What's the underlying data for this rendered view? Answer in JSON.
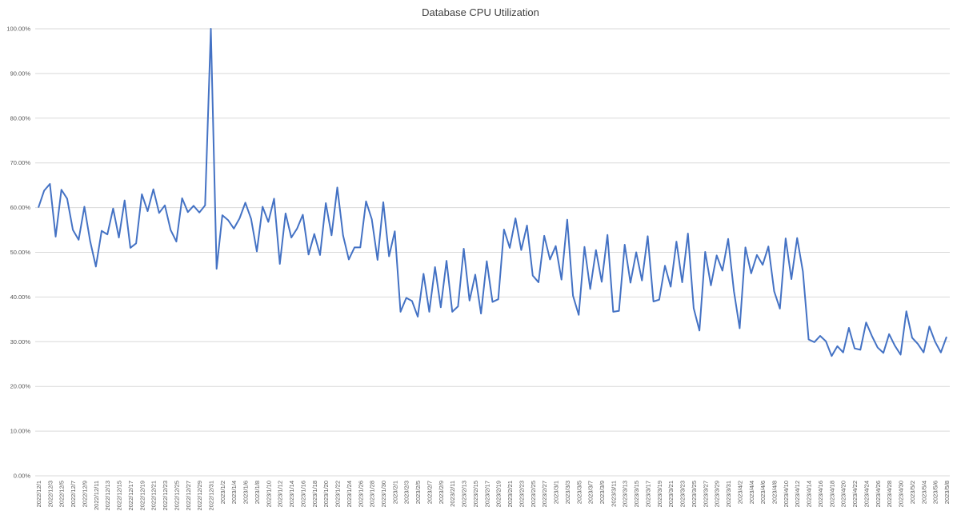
{
  "chart_data": {
    "type": "line",
    "title": "Database CPU Utilization",
    "xlabel": "",
    "ylabel": "",
    "ylim": [
      0,
      100
    ],
    "y_ticks": [
      "0.00%",
      "10.00%",
      "20.00%",
      "30.00%",
      "40.00%",
      "50.00%",
      "60.00%",
      "70.00%",
      "80.00%",
      "90.00%",
      "100.00%"
    ],
    "grid": true,
    "line_color": "#4472C4",
    "x_tick_labels": [
      "2022/12/1",
      "2022/12/3",
      "2022/12/5",
      "2022/12/7",
      "2022/12/9",
      "2022/12/11",
      "2022/12/13",
      "2022/12/15",
      "2022/12/17",
      "2022/12/19",
      "2022/12/21",
      "2022/12/23",
      "2022/12/25",
      "2022/12/27",
      "2022/12/29",
      "2022/12/31",
      "2023/1/2",
      "2023/1/4",
      "2023/1/6",
      "2023/1/8",
      "2023/1/10",
      "2023/1/12",
      "2023/1/14",
      "2023/1/16",
      "2023/1/18",
      "2023/1/20",
      "2023/1/22",
      "2023/1/24",
      "2023/1/26",
      "2023/1/28",
      "2023/1/30",
      "2023/2/1",
      "2023/2/3",
      "2023/2/5",
      "2023/2/7",
      "2023/2/9",
      "2023/2/11",
      "2023/2/13",
      "2023/2/15",
      "2023/2/17",
      "2023/2/19",
      "2023/2/21",
      "2023/2/23",
      "2023/2/25",
      "2023/2/27",
      "2023/3/1",
      "2023/3/3",
      "2023/3/5",
      "2023/3/7",
      "2023/3/9",
      "2023/3/11",
      "2023/3/13",
      "2023/3/15",
      "2023/3/17",
      "2023/3/19",
      "2023/3/21",
      "2023/3/23",
      "2023/3/25",
      "2023/3/27",
      "2023/3/29",
      "2023/3/31",
      "2023/4/2",
      "2023/4/4",
      "2023/4/6",
      "2023/4/8",
      "2023/4/10",
      "2023/4/12",
      "2023/4/14",
      "2023/4/16",
      "2023/4/18",
      "2023/4/20",
      "2023/4/22",
      "2023/4/24",
      "2023/4/26",
      "2023/4/28",
      "2023/4/30",
      "2023/5/2",
      "2023/5/4",
      "2023/5/6",
      "2023/5/8"
    ],
    "series": [
      {
        "values": [
          60.0,
          63.8,
          65.3,
          53.5,
          64.0,
          62.0,
          55.0,
          52.8,
          60.2,
          52.5,
          46.8,
          54.8,
          54.0,
          59.8,
          53.3,
          61.6,
          51.0,
          52.0,
          63.0,
          59.2,
          64.1,
          58.8,
          60.5,
          55.0,
          52.4,
          62.1,
          59.0,
          60.4,
          58.9,
          60.5,
          100.0,
          46.3,
          58.3,
          57.2,
          55.3,
          57.6,
          61.1,
          57.5,
          50.2,
          60.2,
          56.8,
          62.0,
          47.4,
          58.7,
          53.3,
          55.3,
          58.4,
          49.5,
          54.1,
          49.4,
          61.0,
          53.8,
          64.5,
          53.8,
          48.4,
          51.1,
          51.1,
          61.4,
          57.4,
          48.3,
          61.2,
          49.1,
          54.7,
          36.7,
          39.8,
          39.1,
          35.6,
          45.2,
          36.7,
          46.7,
          37.7,
          48.1,
          36.7,
          37.9,
          50.8,
          39.2,
          45.0,
          36.3,
          48.0,
          38.9,
          39.5,
          55.1,
          51.0,
          57.6,
          50.5,
          56.0,
          44.8,
          43.3,
          53.7,
          48.4,
          51.4,
          43.9,
          57.3,
          40.3,
          36.0,
          51.2,
          41.8,
          50.5,
          43.4,
          53.9,
          36.7,
          36.9,
          51.7,
          43.2,
          50.0,
          43.7,
          53.6,
          39.0,
          39.4,
          47.0,
          42.3,
          52.4,
          43.3,
          54.2,
          37.5,
          32.5,
          50.1,
          42.6,
          49.3,
          45.9,
          53.0,
          41.3,
          33.0,
          51.1,
          45.3,
          49.4,
          47.2,
          51.3,
          41.3,
          37.4,
          53.1,
          44.0,
          53.2,
          45.7,
          30.5,
          29.9,
          31.3,
          30.1,
          26.8,
          29.0,
          27.6,
          33.1,
          28.5,
          28.2,
          34.3,
          31.3,
          28.7,
          27.5,
          31.7,
          29.1,
          27.1,
          36.8,
          30.9,
          29.5,
          27.6,
          33.4,
          30.0,
          27.6,
          31.1
        ]
      }
    ]
  }
}
